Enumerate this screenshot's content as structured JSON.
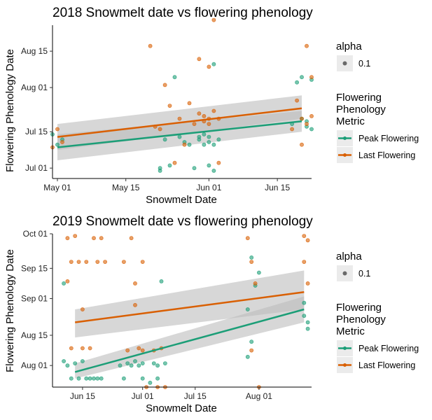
{
  "colors": {
    "peak": "#1b9e77",
    "last": "#d95f02",
    "ribbon": "#bdbdbd",
    "legend_key_bg": "#ebebeb"
  },
  "legend": {
    "alpha_title": "alpha",
    "alpha_value": "0.1",
    "metric_title_lines": [
      "Flowering",
      "Phenology",
      "Metric"
    ],
    "series": [
      "Peak Flowering",
      "Last Flowering"
    ]
  },
  "chart_data": [
    {
      "type": "scatter",
      "title": "2018 Snowmelt date vs flowering phenology",
      "xlabel": "Snowmelt Date",
      "ylabel": "Flowering Phenology Date",
      "x_ticks": [
        "May 01",
        "May 15",
        "Jun 01",
        "Jun 15"
      ],
      "y_ticks": [
        "Jul 01",
        "Jul 15",
        "Aug 01",
        "Aug 15"
      ],
      "xlim": [
        "2018-04-30",
        "2018-06-22"
      ],
      "ylim": [
        "2018-06-27",
        "2018-08-25"
      ],
      "grid": false,
      "legend_position": "right",
      "series": [
        {
          "name": "Peak Flowering",
          "trend": {
            "x": [
              "2018-05-01",
              "2018-06-20"
            ],
            "y": [
              "2018-07-09",
              "2018-07-19"
            ]
          },
          "ribbon_lower": [
            "2018-07-04",
            "2018-07-15"
          ],
          "ribbon_upper": [
            "2018-07-14",
            "2018-07-23"
          ],
          "points": [
            [
              "2018-04-30",
              "2018-07-14"
            ],
            [
              "2018-05-01",
              "2018-07-10"
            ],
            [
              "2018-05-02",
              "2018-07-12"
            ],
            [
              "2018-05-22",
              "2018-07-01"
            ],
            [
              "2018-05-22",
              "2018-06-30"
            ],
            [
              "2018-05-23",
              "2018-07-12"
            ],
            [
              "2018-05-24",
              "2018-07-02"
            ],
            [
              "2018-05-25",
              "2018-08-05"
            ],
            [
              "2018-05-26",
              "2018-07-13"
            ],
            [
              "2018-05-27",
              "2018-07-11"
            ],
            [
              "2018-05-28",
              "2018-07-10"
            ],
            [
              "2018-05-29",
              "2018-07-01"
            ],
            [
              "2018-05-30",
              "2018-07-12"
            ],
            [
              "2018-05-30",
              "2018-07-13"
            ],
            [
              "2018-05-31",
              "2018-07-10"
            ],
            [
              "2018-05-31",
              "2018-07-14"
            ],
            [
              "2018-06-01",
              "2018-07-11"
            ],
            [
              "2018-06-01",
              "2018-07-13"
            ],
            [
              "2018-06-01",
              "2018-07-02"
            ],
            [
              "2018-06-02",
              "2018-07-10"
            ],
            [
              "2018-06-02",
              "2018-06-30"
            ],
            [
              "2018-06-02",
              "2018-08-10"
            ],
            [
              "2018-06-03",
              "2018-07-12"
            ],
            [
              "2018-06-18",
              "2018-07-18"
            ],
            [
              "2018-06-19",
              "2018-08-03"
            ],
            [
              "2018-06-20",
              "2018-07-20"
            ],
            [
              "2018-06-20",
              "2018-08-05"
            ],
            [
              "2018-06-21",
              "2018-07-17"
            ],
            [
              "2018-06-21",
              "2018-07-19"
            ],
            [
              "2018-06-22",
              "2018-08-04"
            ],
            [
              "2018-06-22",
              "2018-07-16"
            ]
          ]
        },
        {
          "name": "Last Flowering",
          "trend": {
            "x": [
              "2018-05-01",
              "2018-06-20"
            ],
            "y": [
              "2018-07-13",
              "2018-07-24"
            ]
          },
          "ribbon_lower": [
            "2018-07-08",
            "2018-07-20"
          ],
          "ribbon_upper": [
            "2018-07-18",
            "2018-07-29"
          ],
          "points": [
            [
              "2018-04-30",
              "2018-07-09"
            ],
            [
              "2018-05-01",
              "2018-07-16"
            ],
            [
              "2018-05-02",
              "2018-07-11"
            ],
            [
              "2018-05-20",
              "2018-08-17"
            ],
            [
              "2018-05-21",
              "2018-07-17"
            ],
            [
              "2018-05-22",
              "2018-07-16"
            ],
            [
              "2018-05-23",
              "2018-08-02"
            ],
            [
              "2018-05-24",
              "2018-07-25"
            ],
            [
              "2018-05-25",
              "2018-07-03"
            ],
            [
              "2018-05-26",
              "2018-07-20"
            ],
            [
              "2018-05-27",
              "2018-07-10"
            ],
            [
              "2018-05-28",
              "2018-07-26"
            ],
            [
              "2018-05-29",
              "2018-07-18"
            ],
            [
              "2018-05-30",
              "2018-07-22"
            ],
            [
              "2018-05-30",
              "2018-08-12"
            ],
            [
              "2018-05-31",
              "2018-07-21"
            ],
            [
              "2018-05-31",
              "2018-07-19"
            ],
            [
              "2018-06-01",
              "2018-07-18"
            ],
            [
              "2018-06-01",
              "2018-07-20"
            ],
            [
              "2018-06-01",
              "2018-08-09"
            ],
            [
              "2018-06-02",
              "2018-08-27"
            ],
            [
              "2018-06-02",
              "2018-07-23"
            ],
            [
              "2018-06-03",
              "2018-07-20"
            ],
            [
              "2018-06-03",
              "2018-07-03"
            ],
            [
              "2018-06-18",
              "2018-07-16"
            ],
            [
              "2018-06-19",
              "2018-07-27"
            ],
            [
              "2018-06-20",
              "2018-07-20"
            ],
            [
              "2018-06-20",
              "2018-07-10"
            ],
            [
              "2018-06-21",
              "2018-08-17"
            ],
            [
              "2018-06-21",
              "2018-07-18"
            ],
            [
              "2018-06-22",
              "2018-07-21"
            ],
            [
              "2018-06-22",
              "2018-08-05"
            ]
          ]
        }
      ]
    },
    {
      "type": "scatter",
      "title": "2019 Snowmelt date vs flowering phenology",
      "xlabel": "Snowmelt Date",
      "ylabel": "Flowering Phenology Date",
      "x_ticks": [
        "Jun 15",
        "Jul 01",
        "Jul 15",
        "Aug 01"
      ],
      "y_ticks": [
        "Aug 01",
        "Aug 15",
        "Sep 01",
        "Sep 15",
        "Oct 01"
      ],
      "xlim": [
        "2019-06-07",
        "2019-08-15"
      ],
      "ylim": [
        "2019-07-22",
        "2019-10-01"
      ],
      "grid": false,
      "legend_position": "right",
      "series": [
        {
          "name": "Peak Flowering",
          "trend": {
            "x": [
              "2019-06-13",
              "2019-08-13"
            ],
            "y": [
              "2019-07-29",
              "2019-08-27"
            ]
          },
          "ribbon_lower": [
            "2019-07-26",
            "2019-08-21"
          ],
          "ribbon_upper": [
            "2019-08-02",
            "2019-09-02"
          ],
          "points": [
            [
              "2019-06-11",
              "2019-08-01"
            ],
            [
              "2019-06-12",
              "2019-07-26"
            ],
            [
              "2019-06-13",
              "2019-08-02"
            ],
            [
              "2019-06-14",
              "2019-07-26"
            ],
            [
              "2019-06-15",
              "2019-08-03"
            ],
            [
              "2019-06-16",
              "2019-07-26"
            ],
            [
              "2019-06-17",
              "2019-07-26"
            ],
            [
              "2019-06-18",
              "2019-07-26"
            ],
            [
              "2019-06-19",
              "2019-07-26"
            ],
            [
              "2019-06-20",
              "2019-07-26"
            ],
            [
              "2019-06-25",
              "2019-08-01"
            ],
            [
              "2019-06-26",
              "2019-07-26"
            ],
            [
              "2019-06-27",
              "2019-08-02"
            ],
            [
              "2019-06-28",
              "2019-08-01"
            ],
            [
              "2019-06-29",
              "2019-08-03"
            ],
            [
              "2019-06-30",
              "2019-08-01"
            ],
            [
              "2019-07-01",
              "2019-08-02"
            ],
            [
              "2019-07-01",
              "2019-07-26"
            ],
            [
              "2019-07-03",
              "2019-07-24"
            ],
            [
              "2019-07-04",
              "2019-08-02"
            ],
            [
              "2019-07-05",
              "2019-08-01"
            ],
            [
              "2019-07-05",
              "2019-07-26"
            ],
            [
              "2019-07-06",
              "2019-09-09"
            ],
            [
              "2019-07-07",
              "2019-08-02"
            ],
            [
              "2019-06-10",
              "2019-09-08"
            ],
            [
              "2019-06-10",
              "2019-08-03"
            ],
            [
              "2019-07-29",
              "2019-08-05"
            ],
            [
              "2019-07-29",
              "2019-08-27"
            ],
            [
              "2019-07-30",
              "2019-08-12"
            ],
            [
              "2019-07-30",
              "2019-09-20"
            ],
            [
              "2019-07-31",
              "2019-09-07"
            ],
            [
              "2019-08-01",
              "2019-09-13"
            ],
            [
              "2019-08-13",
              "2019-08-24"
            ],
            [
              "2019-08-13",
              "2019-08-30"
            ],
            [
              "2019-08-14",
              "2019-08-18"
            ],
            [
              "2019-08-14",
              "2019-08-21"
            ]
          ]
        },
        {
          "name": "Last Flowering",
          "trend": {
            "x": [
              "2019-06-13",
              "2019-08-13"
            ],
            "y": [
              "2019-08-21",
              "2019-09-04"
            ]
          },
          "ribbon_lower": [
            "2019-08-14",
            "2019-08-27"
          ],
          "ribbon_upper": [
            "2019-08-27",
            "2019-09-14"
          ],
          "points": [
            [
              "2019-06-11",
              "2019-09-29"
            ],
            [
              "2019-06-12",
              "2019-09-18"
            ],
            [
              "2019-06-13",
              "2019-09-30"
            ],
            [
              "2019-06-14",
              "2019-09-18"
            ],
            [
              "2019-06-15",
              "2019-08-09"
            ],
            [
              "2019-06-15",
              "2019-08-27"
            ],
            [
              "2019-06-16",
              "2019-09-18"
            ],
            [
              "2019-06-17",
              "2019-08-09"
            ],
            [
              "2019-06-18",
              "2019-09-29"
            ],
            [
              "2019-06-19",
              "2019-09-18"
            ],
            [
              "2019-06-20",
              "2019-09-29"
            ],
            [
              "2019-06-21",
              "2019-09-18"
            ],
            [
              "2019-06-11",
              "2019-09-09"
            ],
            [
              "2019-06-12",
              "2019-08-09"
            ],
            [
              "2019-06-26",
              "2019-09-18"
            ],
            [
              "2019-06-27",
              "2019-08-08"
            ],
            [
              "2019-06-28",
              "2019-09-29"
            ],
            [
              "2019-06-29",
              "2019-08-29"
            ],
            [
              "2019-06-30",
              "2019-08-09"
            ],
            [
              "2019-07-01",
              "2019-09-18"
            ],
            [
              "2019-07-01",
              "2019-08-08"
            ],
            [
              "2019-06-29",
              "2019-09-08"
            ],
            [
              "2019-07-02",
              "2019-07-22"
            ],
            [
              "2019-07-04",
              "2019-08-08"
            ],
            [
              "2019-07-05",
              "2019-07-22"
            ],
            [
              "2019-07-06",
              "2019-08-09"
            ],
            [
              "2019-07-07",
              "2019-07-22"
            ],
            [
              "2019-07-29",
              "2019-09-29"
            ],
            [
              "2019-07-30",
              "2019-09-18"
            ],
            [
              "2019-07-30",
              "2019-08-08"
            ],
            [
              "2019-07-31",
              "2019-09-08"
            ],
            [
              "2019-08-01",
              "2019-07-22"
            ],
            [
              "2019-08-13",
              "2019-09-30"
            ],
            [
              "2019-08-13",
              "2019-09-18"
            ],
            [
              "2019-08-14",
              "2019-09-28"
            ],
            [
              "2019-08-14",
              "2019-09-08"
            ]
          ]
        }
      ]
    }
  ]
}
